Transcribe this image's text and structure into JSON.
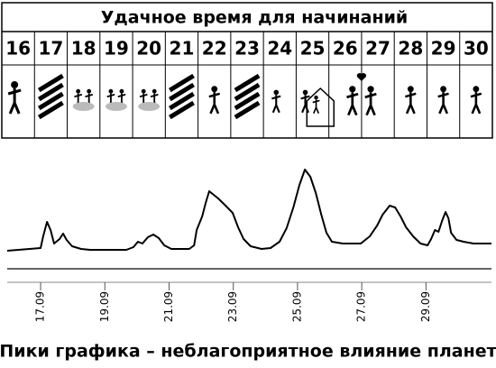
{
  "table": {
    "title": "Удачное время для начинаний",
    "days": [
      16,
      17,
      18,
      19,
      20,
      21,
      22,
      23,
      24,
      25,
      26,
      27,
      28,
      29,
      30
    ]
  },
  "chart_data": {
    "type": "line",
    "caption": "Пики графика – неблагоприятное влияние планет",
    "x": [
      15.96,
      17,
      17.08,
      17.2,
      17.31,
      17.42,
      17.59,
      17.7,
      17.81,
      17.98,
      18.26,
      18.54,
      19.67,
      19.89,
      20.03,
      20.17,
      20.34,
      20.51,
      20.68,
      20.85,
      21.07,
      21.63,
      21.78,
      21.86,
      22.03,
      22.14,
      22.25,
      22.39,
      22.53,
      22.76,
      22.98,
      23.15,
      23.32,
      23.54,
      23.88,
      24.16,
      24.44,
      24.66,
      24.87,
      25.06,
      25.23,
      25.4,
      25.57,
      25.74,
      25.9,
      26.07,
      26.41,
      26.97,
      27.25,
      27.48,
      27.65,
      27.87,
      28.04,
      28.21,
      28.38,
      28.6,
      28.83,
      29.05,
      29.16,
      29.28,
      29.39,
      29.5,
      29.61,
      29.7,
      29.78,
      29.95,
      30.17,
      30.48,
      31.04
    ],
    "values": [
      0,
      3,
      16,
      32,
      23,
      8,
      13,
      19,
      12,
      5,
      2,
      1,
      1,
      4,
      10,
      8,
      15,
      18,
      14,
      6,
      2,
      2,
      6,
      23,
      38,
      53,
      66,
      62,
      58,
      50,
      42,
      26,
      13,
      5,
      2,
      3,
      10,
      25,
      48,
      73,
      90,
      82,
      64,
      40,
      20,
      10,
      8,
      8,
      16,
      28,
      40,
      50,
      48,
      38,
      26,
      16,
      8,
      6,
      13,
      23,
      21,
      33,
      43,
      36,
      20,
      12,
      10,
      8,
      8
    ],
    "color": "#000000",
    "xlim": [
      15.96,
      31.04
    ],
    "ylim": [
      0,
      100
    ],
    "xticks": [
      {
        "value": 17,
        "label": "17.09"
      },
      {
        "value": 19,
        "label": "19.09"
      },
      {
        "value": 21,
        "label": "21.09"
      },
      {
        "value": 23,
        "label": "23.09"
      },
      {
        "value": 25,
        "label": "25.09"
      },
      {
        "value": 27,
        "label": "27.09"
      },
      {
        "value": 29,
        "label": "29.09"
      }
    ]
  }
}
